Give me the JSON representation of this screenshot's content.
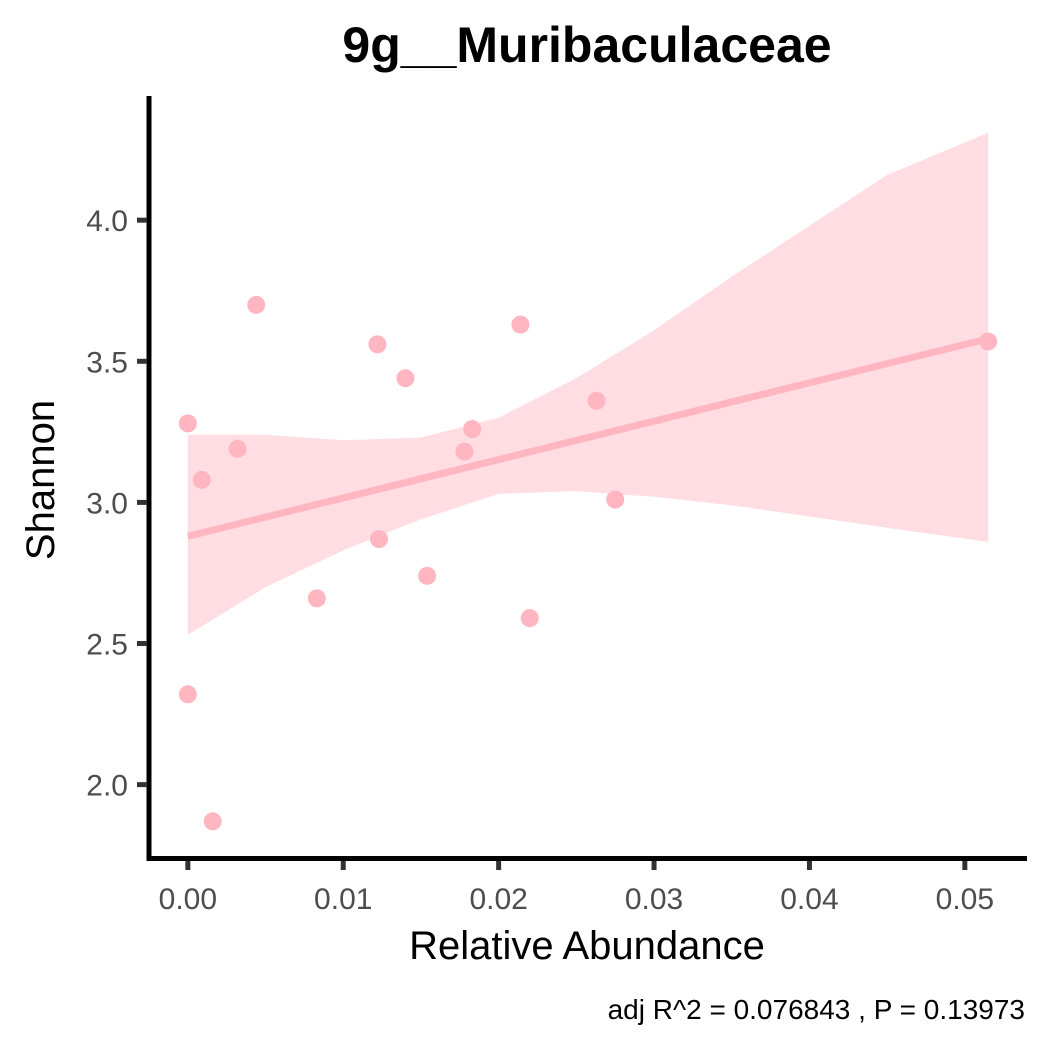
{
  "chart_data": {
    "type": "scatter",
    "title": "9g__Muribaculaceae",
    "xlabel": "Relative Abundance",
    "ylabel": "Shannon",
    "caption": "adj R^2 =  0.076843 , P = 0.13973",
    "xlim": [
      -0.0025,
      0.054
    ],
    "ylim": [
      1.74,
      4.44
    ],
    "x_ticks": [
      0.0,
      0.01,
      0.02,
      0.03,
      0.04,
      0.05
    ],
    "x_tick_labels": [
      "0.00",
      "0.01",
      "0.02",
      "0.03",
      "0.04",
      "0.05"
    ],
    "y_ticks": [
      2.0,
      2.5,
      3.0,
      3.5,
      4.0
    ],
    "y_tick_labels": [
      "2.0",
      "2.5",
      "3.0",
      "3.5",
      "4.0"
    ],
    "grid": false,
    "colors": {
      "points": "#ffb6c1",
      "fit_line": "#ffb6c1",
      "confidence_band": "#ffdde3",
      "axis": "#000000",
      "tick_text": "#4d4d4d"
    },
    "points": [
      {
        "x": 0.0,
        "y": 3.28
      },
      {
        "x": 0.0,
        "y": 2.32
      },
      {
        "x": 0.0009,
        "y": 3.08
      },
      {
        "x": 0.0016,
        "y": 1.87
      },
      {
        "x": 0.0032,
        "y": 3.19
      },
      {
        "x": 0.0044,
        "y": 3.7
      },
      {
        "x": 0.0083,
        "y": 2.66
      },
      {
        "x": 0.0122,
        "y": 3.56
      },
      {
        "x": 0.0123,
        "y": 2.87
      },
      {
        "x": 0.014,
        "y": 3.44
      },
      {
        "x": 0.0154,
        "y": 2.74
      },
      {
        "x": 0.0178,
        "y": 3.18
      },
      {
        "x": 0.0183,
        "y": 3.26
      },
      {
        "x": 0.0214,
        "y": 3.63
      },
      {
        "x": 0.022,
        "y": 2.59
      },
      {
        "x": 0.0263,
        "y": 3.36
      },
      {
        "x": 0.0275,
        "y": 3.01
      },
      {
        "x": 0.0515,
        "y": 3.57
      }
    ],
    "fit_line": {
      "x": [
        0.0,
        0.0515
      ],
      "y": [
        2.88,
        3.58
      ]
    },
    "confidence_band": {
      "x": [
        0.0,
        0.005,
        0.01,
        0.015,
        0.02,
        0.025,
        0.03,
        0.035,
        0.04,
        0.045,
        0.0515
      ],
      "upper": [
        3.24,
        3.24,
        3.22,
        3.23,
        3.3,
        3.44,
        3.61,
        3.8,
        3.98,
        4.16,
        4.31
      ],
      "lower": [
        2.53,
        2.7,
        2.83,
        2.94,
        3.03,
        3.04,
        3.02,
        2.99,
        2.95,
        2.91,
        2.86
      ]
    }
  }
}
